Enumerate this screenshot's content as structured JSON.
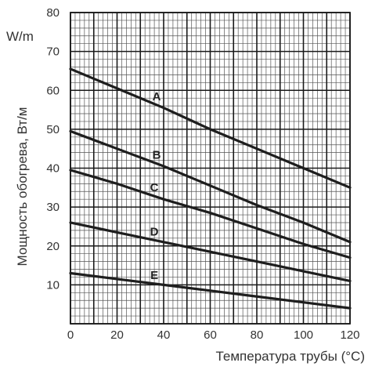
{
  "chart_data": {
    "type": "line",
    "title": "",
    "xlabel": "Температура трубы (°C)",
    "ylabel": "Мощность обогрева, Вт/м",
    "y_unit_label": "W/m",
    "xlim": [
      0,
      120
    ],
    "ylim": [
      0,
      80
    ],
    "x_ticks": [
      0,
      20,
      40,
      60,
      80,
      100,
      120
    ],
    "y_ticks": [
      10,
      20,
      30,
      40,
      50,
      60,
      70,
      80
    ],
    "minor_grid_x_step": 2,
    "minor_grid_y_step": 2,
    "grid": true,
    "legend": "inline labels on curves",
    "series": [
      {
        "name": "A",
        "x": [
          0,
          20,
          40,
          60,
          80,
          100,
          120
        ],
        "y": [
          65.5,
          60.5,
          55.5,
          50,
          45,
          40,
          35
        ]
      },
      {
        "name": "B",
        "x": [
          0,
          20,
          40,
          60,
          80,
          100,
          120
        ],
        "y": [
          49.5,
          45,
          40.5,
          35.5,
          30.5,
          26,
          21
        ]
      },
      {
        "name": "C",
        "x": [
          0,
          20,
          40,
          60,
          80,
          100,
          120
        ],
        "y": [
          39.5,
          36,
          32,
          28.5,
          24.5,
          20.5,
          17
        ]
      },
      {
        "name": "D",
        "x": [
          0,
          20,
          40,
          60,
          80,
          100,
          120
        ],
        "y": [
          26,
          23.5,
          21,
          18.5,
          16,
          13.5,
          11
        ]
      },
      {
        "name": "E",
        "x": [
          0,
          20,
          40,
          60,
          80,
          100,
          120
        ],
        "y": [
          13,
          11.5,
          10,
          8.5,
          7,
          5.5,
          4
        ]
      }
    ]
  },
  "colors": {
    "major_grid": "#1a1a1a",
    "minor_grid": "#555555",
    "curve": "#1e1e1e",
    "text": "#333333",
    "background": "#ffffff"
  }
}
